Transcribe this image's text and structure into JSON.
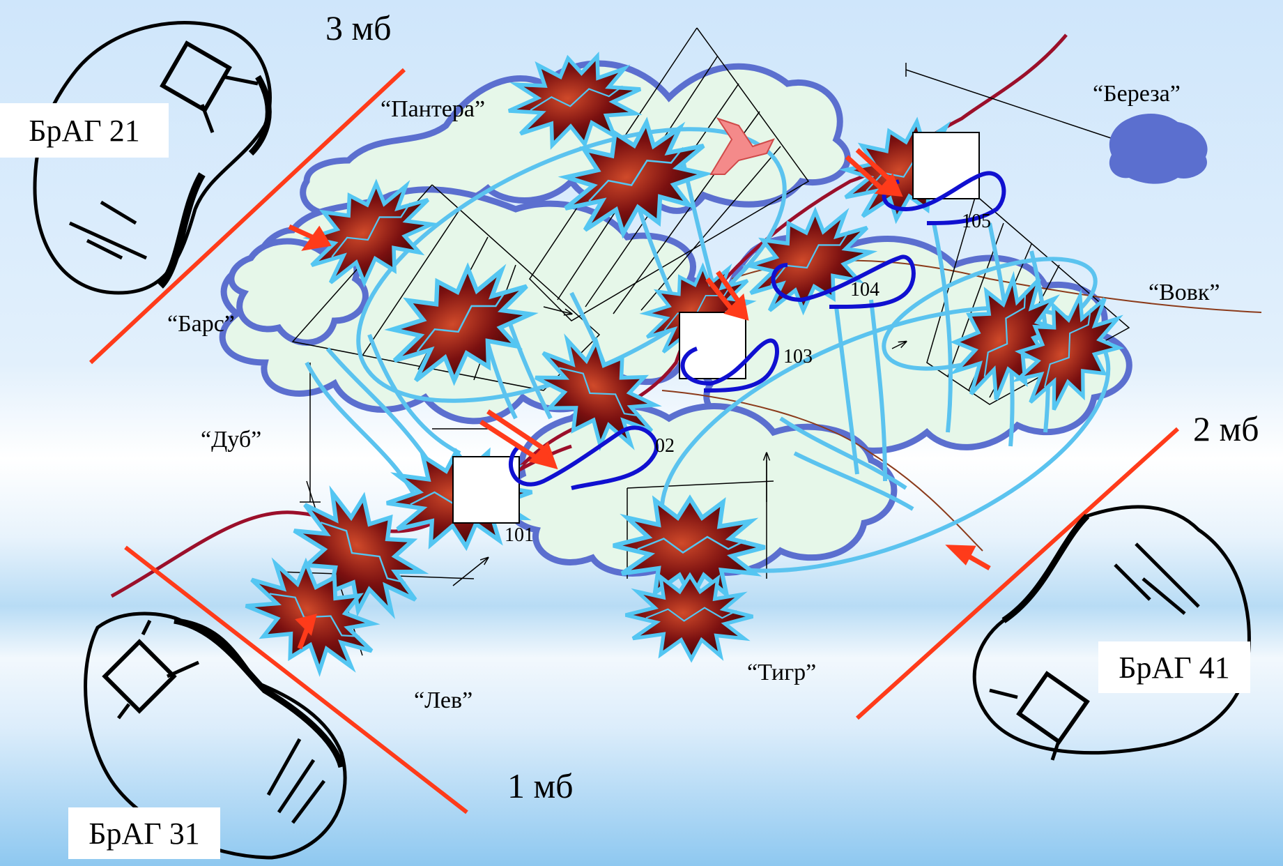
{
  "battalions": {
    "mb3": "3 мб",
    "mb2": "2 мб",
    "mb1": "1 мб"
  },
  "artillery_groups": {
    "brag21": "БрАГ 21",
    "brag31": "БрАГ 31",
    "brag41": "БрАГ 41"
  },
  "landmarks": {
    "pantera": "“Пантера”",
    "bereza": "“Береза”",
    "bars": "“Барс”",
    "vovk": "“Вовк”",
    "dub": "“Дуб”",
    "tigr": "“Тигр”",
    "lev": "“Лев”"
  },
  "targets": {
    "t101": "101",
    "t102": "02",
    "t103": "103",
    "t104": "104",
    "t105": "105"
  },
  "colors": {
    "forest_fill": "#e6f7e9",
    "forest_stroke": "#5b6fcf",
    "front_line": "#ff3b1a",
    "arc": "#5bc3ef",
    "target_loop": "#1010d0",
    "road": "#9b0f2a",
    "burst_dark": "#6b0d0d",
    "burst_edge": "#54c6f2"
  }
}
